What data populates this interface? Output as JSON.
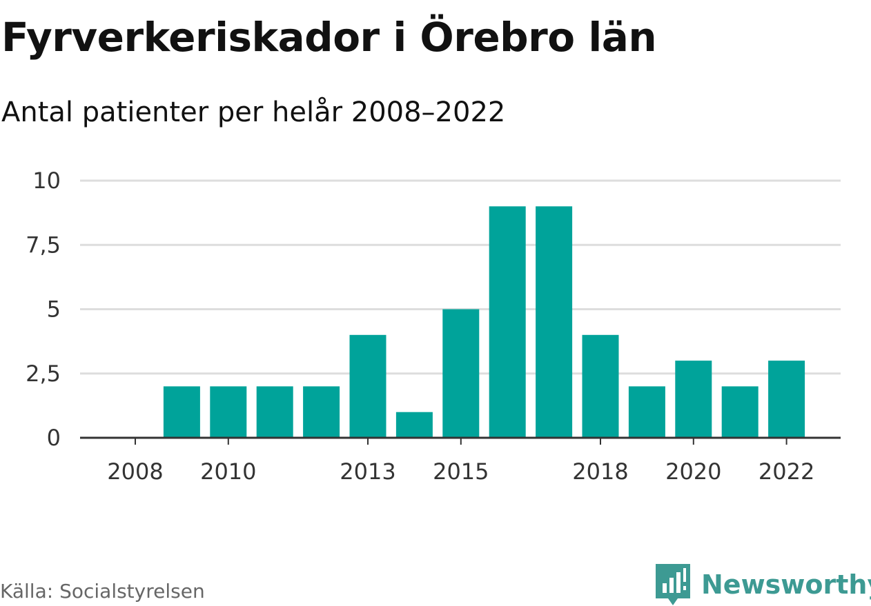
{
  "header": {
    "title": "Fyrverkeriskador i Örebro län",
    "subtitle": "Antal patienter per helår 2008–2022"
  },
  "footer": {
    "source": "Källa: Socialstyrelsen",
    "brand": "Newsworthy"
  },
  "colors": {
    "bar": "#00a39a",
    "brand": "#3d9a93",
    "grid": "#dddddd",
    "axis": "#333333"
  },
  "chart_data": {
    "type": "bar",
    "categories": [
      2008,
      2009,
      2010,
      2011,
      2012,
      2013,
      2014,
      2015,
      2016,
      2017,
      2018,
      2019,
      2020,
      2021,
      2022
    ],
    "values": [
      0,
      2,
      2,
      2,
      2,
      4,
      1,
      5,
      9,
      9,
      4,
      2,
      3,
      2,
      3
    ],
    "x_tick_labels": [
      "2008",
      "2010",
      "2013",
      "2015",
      "2018",
      "2020",
      "2022"
    ],
    "y_ticks": [
      0,
      2.5,
      5,
      7.5,
      10
    ],
    "y_tick_labels": [
      "0",
      "2,5",
      "5",
      "7,5",
      "10"
    ],
    "ylim": [
      0,
      10
    ],
    "grid": true
  }
}
